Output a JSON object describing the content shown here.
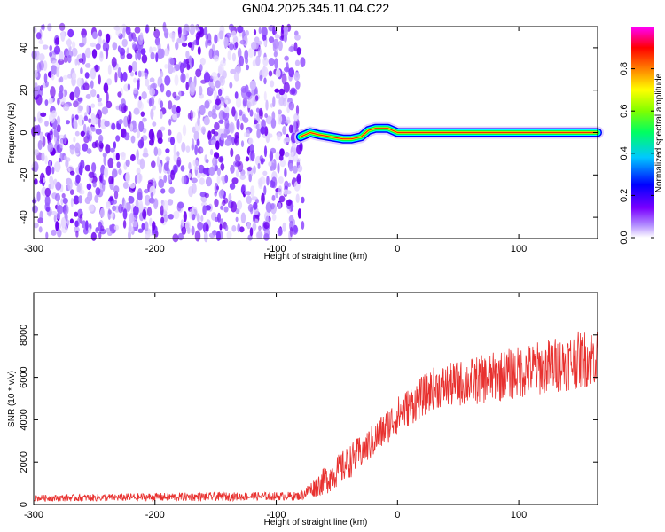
{
  "title": "GN04.2025.345.11.04.C22",
  "chart_data": [
    {
      "type": "heatmap",
      "xlabel": "Height of straight line (km)",
      "ylabel": "Frequency (Hz)",
      "xlim": [
        -300,
        165
      ],
      "ylim": [
        -50,
        50
      ],
      "xticks": [
        -300,
        -200,
        -100,
        0,
        100
      ],
      "yticks": [
        -40,
        -20,
        0,
        20,
        40
      ],
      "grid": false,
      "noise_region_x": [
        -300,
        -78
      ],
      "ridge": [
        {
          "x": -80,
          "y": -2
        },
        {
          "x": -72,
          "y": 0
        },
        {
          "x": -65,
          "y": -1
        },
        {
          "x": -55,
          "y": -2
        },
        {
          "x": -45,
          "y": -3
        },
        {
          "x": -38,
          "y": -3
        },
        {
          "x": -30,
          "y": -2
        },
        {
          "x": -24,
          "y": 1
        },
        {
          "x": -18,
          "y": 2
        },
        {
          "x": -8,
          "y": 2
        },
        {
          "x": 0,
          "y": 0
        },
        {
          "x": 50,
          "y": 0
        },
        {
          "x": 165,
          "y": 0
        }
      ],
      "colorbar": {
        "label": "Normalized spectral amplitude",
        "range": [
          0,
          1
        ],
        "ticks": [
          "0.0",
          "0.2",
          "0.4",
          "0.6",
          "0.8"
        ],
        "colors": [
          "#ffffff",
          "#8000ff",
          "#0000ff",
          "#00ffff",
          "#00ff00",
          "#ffff00",
          "#ff8000",
          "#ff0000",
          "#ff00ff"
        ]
      }
    },
    {
      "type": "line",
      "xlabel": "Height of straight line (km)",
      "ylabel": "SNR (10 * v/v)",
      "xlim": [
        -300,
        165
      ],
      "ylim": [
        0,
        10000
      ],
      "xticks": [
        -300,
        -200,
        -100,
        0,
        100
      ],
      "yticks": [
        0,
        2000,
        4000,
        6000,
        8000
      ],
      "color": "#e8312f",
      "grid": false,
      "trend": [
        {
          "x": -300,
          "mean": 300,
          "noise": 150
        },
        {
          "x": -200,
          "mean": 350,
          "noise": 200
        },
        {
          "x": -80,
          "mean": 400,
          "noise": 200
        },
        {
          "x": -58,
          "mean": 1200,
          "noise": 700
        },
        {
          "x": -40,
          "mean": 2000,
          "noise": 800
        },
        {
          "x": -20,
          "mean": 3000,
          "noise": 800
        },
        {
          "x": 0,
          "mean": 4200,
          "noise": 900
        },
        {
          "x": 30,
          "mean": 5500,
          "noise": 1000
        },
        {
          "x": 80,
          "mean": 6000,
          "noise": 1200
        },
        {
          "x": 165,
          "mean": 7000,
          "noise": 1400
        }
      ]
    }
  ]
}
